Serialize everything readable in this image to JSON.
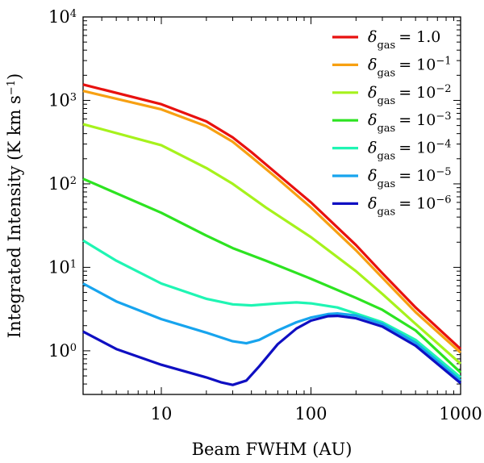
{
  "chart_data": {
    "type": "line",
    "title": "",
    "xlabel": "Beam FWHM (AU)",
    "ylabel": "Integrated Intensity (K km s",
    "ylabel_sup": "−1",
    "ylabel_close": ")",
    "xscale": "log",
    "yscale": "log",
    "xlim": [
      3,
      1000
    ],
    "ylim": [
      0.3,
      10000
    ],
    "x_ticks": [
      {
        "value": 10,
        "label": "10"
      },
      {
        "value": 100,
        "label": "100"
      },
      {
        "value": 1000,
        "label": "1000"
      }
    ],
    "y_ticks": [
      {
        "value": 1,
        "base": "10",
        "exp": "0"
      },
      {
        "value": 10,
        "base": "10",
        "exp": "1"
      },
      {
        "value": 100,
        "base": "10",
        "exp": "2"
      },
      {
        "value": 1000,
        "base": "10",
        "exp": "3"
      },
      {
        "value": 10000,
        "base": "10",
        "exp": "4"
      }
    ],
    "legend_position": "top-right",
    "legend_symbol": "δ",
    "legend_sub": "gas",
    "series": [
      {
        "name": "δgas = 1.0",
        "eq": "= 1.0",
        "exp": "",
        "color": "#e8110f",
        "points": [
          [
            3,
            1550
          ],
          [
            10,
            900
          ],
          [
            20,
            560
          ],
          [
            30,
            360
          ],
          [
            40,
            240
          ],
          [
            60,
            130
          ],
          [
            100,
            60
          ],
          [
            200,
            18.5
          ],
          [
            300,
            8.5
          ],
          [
            500,
            3.3
          ],
          [
            1000,
            1.05
          ]
        ]
      },
      {
        "name": "δgas = 10^-1",
        "eq": "= 10",
        "exp": "−1",
        "color": "#f7a012",
        "points": [
          [
            3,
            1300
          ],
          [
            10,
            780
          ],
          [
            20,
            490
          ],
          [
            30,
            320
          ],
          [
            40,
            210
          ],
          [
            60,
            115
          ],
          [
            100,
            52
          ],
          [
            200,
            16
          ],
          [
            300,
            7.5
          ],
          [
            500,
            2.9
          ],
          [
            1000,
            0.95
          ]
        ]
      },
      {
        "name": "δgas = 10^-2",
        "eq": "= 10",
        "exp": "−2",
        "color": "#a6f21c",
        "points": [
          [
            3,
            520
          ],
          [
            10,
            290
          ],
          [
            20,
            155
          ],
          [
            30,
            100
          ],
          [
            50,
            52
          ],
          [
            100,
            23
          ],
          [
            200,
            9
          ],
          [
            300,
            4.8
          ],
          [
            500,
            2.1
          ],
          [
            1000,
            0.7
          ]
        ]
      },
      {
        "name": "δgas = 10^-3",
        "eq": "= 10",
        "exp": "−3",
        "color": "#2de321",
        "points": [
          [
            3,
            115
          ],
          [
            10,
            45
          ],
          [
            20,
            24
          ],
          [
            30,
            17
          ],
          [
            50,
            12
          ],
          [
            100,
            7.3
          ],
          [
            200,
            4.3
          ],
          [
            300,
            3.1
          ],
          [
            500,
            1.75
          ],
          [
            1000,
            0.55
          ]
        ]
      },
      {
        "name": "δgas = 10^-4",
        "eq": "= 10",
        "exp": "−4",
        "color": "#1ff5b3",
        "points": [
          [
            3,
            21
          ],
          [
            5,
            12
          ],
          [
            10,
            6.4
          ],
          [
            20,
            4.2
          ],
          [
            30,
            3.6
          ],
          [
            40,
            3.5
          ],
          [
            60,
            3.7
          ],
          [
            80,
            3.8
          ],
          [
            100,
            3.7
          ],
          [
            150,
            3.3
          ],
          [
            200,
            2.8
          ],
          [
            300,
            2.2
          ],
          [
            500,
            1.35
          ],
          [
            1000,
            0.48
          ]
        ]
      },
      {
        "name": "δgas = 10^-5",
        "eq": "= 10",
        "exp": "−5",
        "color": "#17a4ee",
        "points": [
          [
            3,
            6.4
          ],
          [
            5,
            3.9
          ],
          [
            10,
            2.4
          ],
          [
            20,
            1.65
          ],
          [
            30,
            1.3
          ],
          [
            37,
            1.23
          ],
          [
            45,
            1.35
          ],
          [
            60,
            1.75
          ],
          [
            80,
            2.2
          ],
          [
            100,
            2.5
          ],
          [
            130,
            2.75
          ],
          [
            150,
            2.8
          ],
          [
            200,
            2.65
          ],
          [
            300,
            2.1
          ],
          [
            500,
            1.25
          ],
          [
            1000,
            0.44
          ]
        ]
      },
      {
        "name": "δgas = 10^-6",
        "eq": "= 10",
        "exp": "−6",
        "color": "#0f0fc2",
        "points": [
          [
            3,
            1.7
          ],
          [
            5,
            1.05
          ],
          [
            10,
            0.68
          ],
          [
            20,
            0.48
          ],
          [
            25,
            0.42
          ],
          [
            30,
            0.39
          ],
          [
            37,
            0.44
          ],
          [
            45,
            0.65
          ],
          [
            60,
            1.2
          ],
          [
            80,
            1.85
          ],
          [
            100,
            2.3
          ],
          [
            130,
            2.6
          ],
          [
            150,
            2.62
          ],
          [
            200,
            2.45
          ],
          [
            300,
            1.95
          ],
          [
            500,
            1.15
          ],
          [
            1000,
            0.41
          ]
        ]
      }
    ]
  }
}
